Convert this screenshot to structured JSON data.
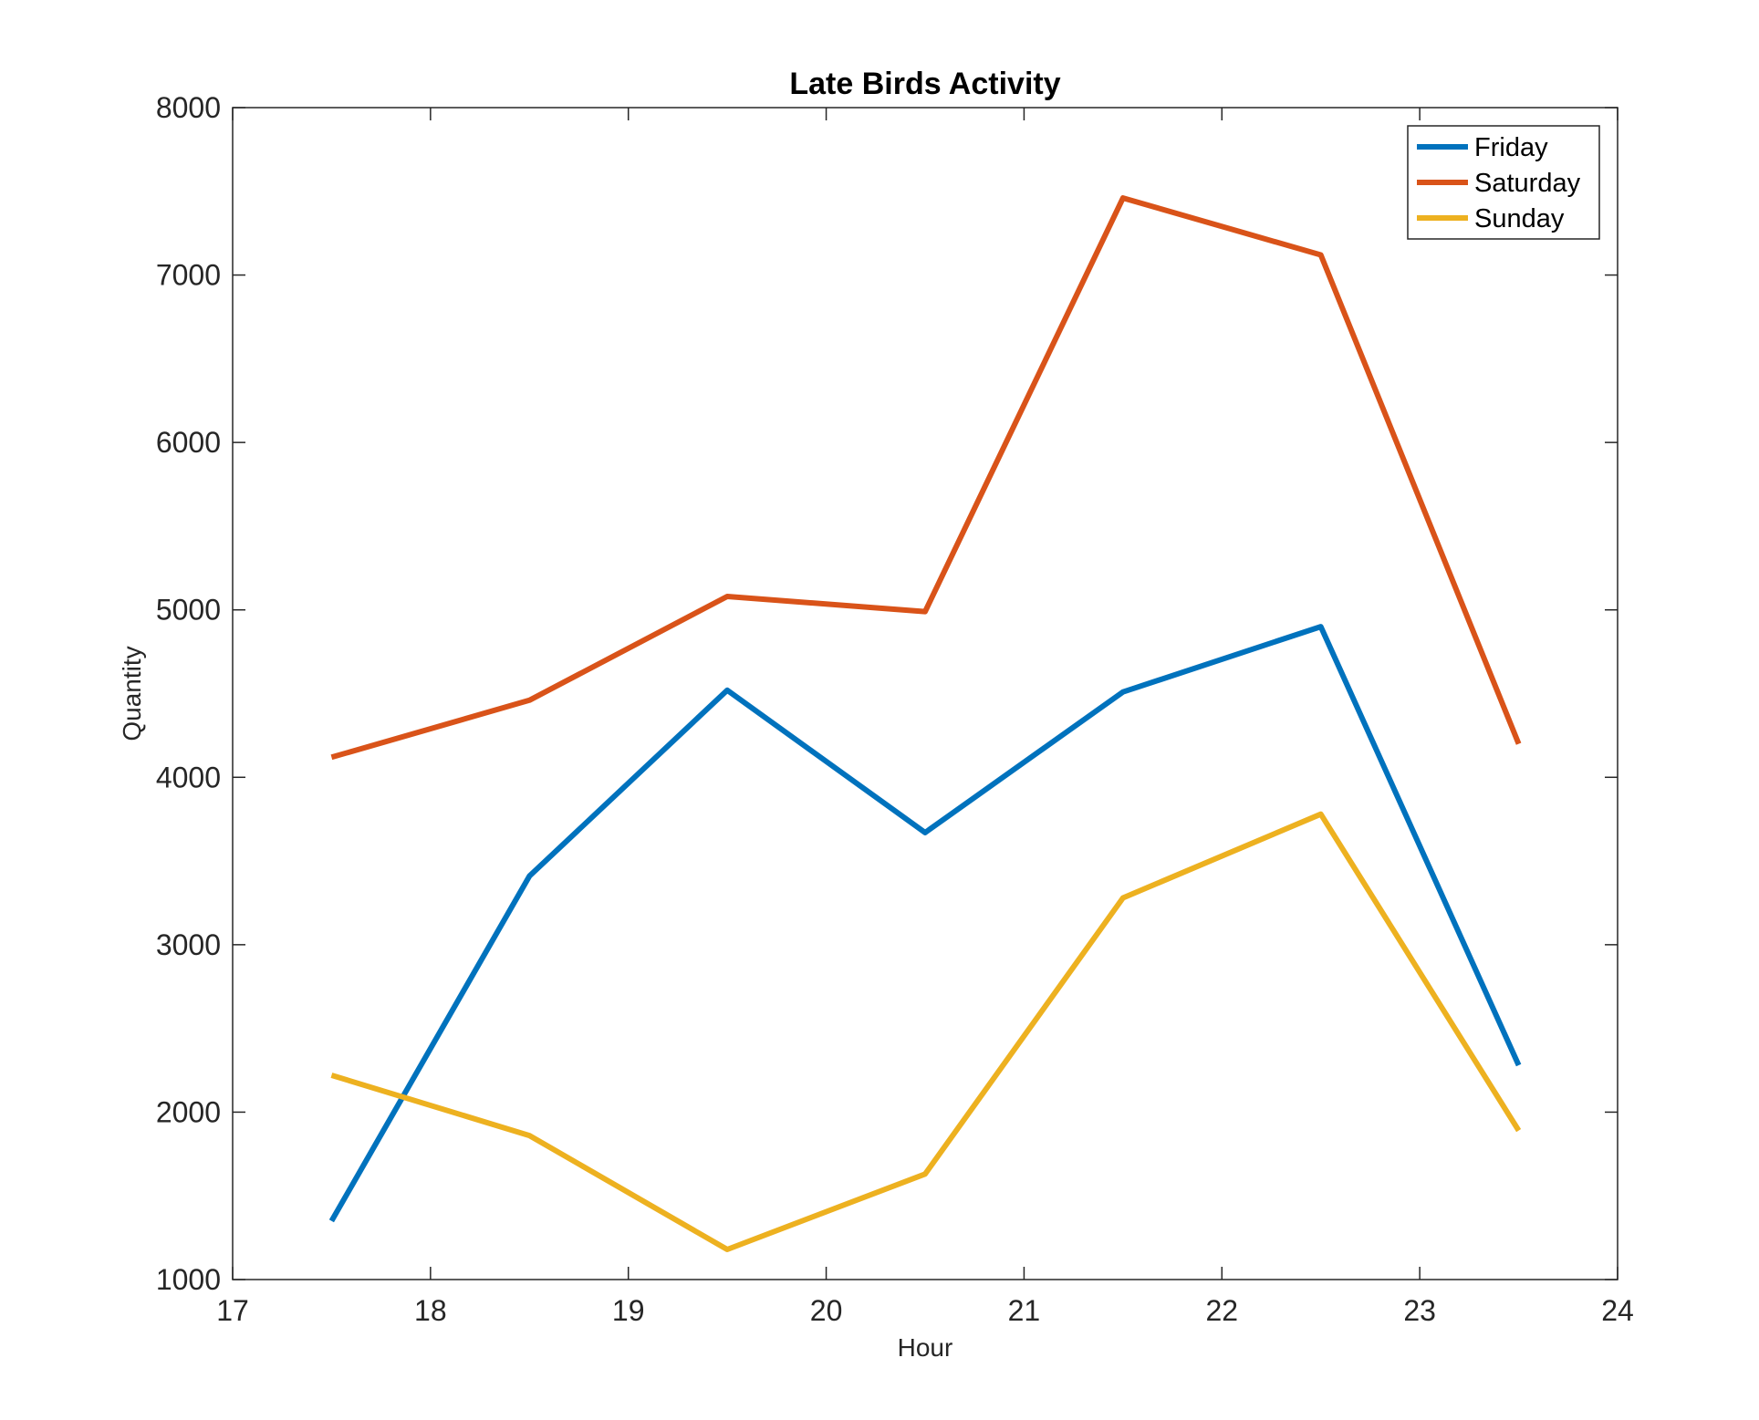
{
  "chart_data": {
    "type": "line",
    "title": "Late Birds Activity",
    "xlabel": "Hour",
    "ylabel": "Quantity",
    "xlim": [
      17,
      24
    ],
    "ylim": [
      1000,
      8000
    ],
    "xticks": [
      17,
      18,
      19,
      20,
      21,
      22,
      23,
      24
    ],
    "yticks": [
      1000,
      2000,
      3000,
      4000,
      5000,
      6000,
      7000,
      8000
    ],
    "x": [
      17.5,
      18.5,
      19.5,
      20.5,
      21.5,
      22.5,
      23.5
    ],
    "series": [
      {
        "name": "Friday",
        "color": "#0072BD",
        "values": [
          1350,
          3410,
          4520,
          3670,
          4510,
          4900,
          2280
        ]
      },
      {
        "name": "Saturday",
        "color": "#D95319",
        "values": [
          4120,
          4460,
          5080,
          4990,
          7460,
          7120,
          4200
        ]
      },
      {
        "name": "Sunday",
        "color": "#EDB120",
        "values": [
          2220,
          1860,
          1180,
          1630,
          3280,
          3780,
          1890
        ]
      }
    ],
    "grid": false,
    "legend_position": "top-right"
  }
}
